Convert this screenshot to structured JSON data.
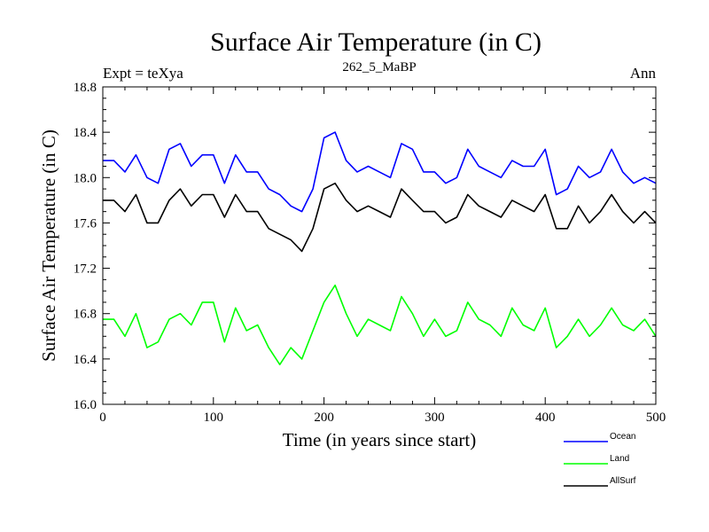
{
  "header": {
    "title": "Surface Air Temperature (in C)",
    "subtitle": "262_5_MaBP",
    "left_label": "Expt = teXya",
    "right_label": "Ann"
  },
  "chart_data": {
    "type": "line",
    "title": "Surface Air Temperature (in C)",
    "subtitle": "262_5_MaBP",
    "xlabel": "Time (in years since start)",
    "ylabel": "Surface Air Temperature (in C)",
    "xlim": [
      0,
      500
    ],
    "ylim": [
      16.0,
      18.8
    ],
    "xticks": [
      "0",
      "100",
      "200",
      "300",
      "400",
      "500"
    ],
    "yticks": [
      "16.0",
      "16.4",
      "16.8",
      "17.2",
      "17.6",
      "18.0",
      "18.4",
      "18.8"
    ],
    "grid": false,
    "legend_position": "bottom-right",
    "x": [
      0,
      10,
      20,
      30,
      40,
      50,
      60,
      70,
      80,
      90,
      100,
      110,
      120,
      130,
      140,
      150,
      160,
      170,
      180,
      190,
      200,
      210,
      220,
      230,
      240,
      250,
      260,
      270,
      280,
      290,
      300,
      310,
      320,
      330,
      340,
      350,
      360,
      370,
      380,
      390,
      400,
      410,
      420,
      430,
      440,
      450,
      460,
      470,
      480,
      490,
      500
    ],
    "series": [
      {
        "name": "Ocean",
        "color": "#0000ff",
        "values": [
          18.15,
          18.15,
          18.05,
          18.2,
          18.0,
          17.95,
          18.25,
          18.3,
          18.1,
          18.2,
          18.2,
          17.95,
          18.2,
          18.05,
          18.05,
          17.9,
          17.85,
          17.75,
          17.7,
          17.9,
          18.35,
          18.4,
          18.15,
          18.05,
          18.1,
          18.05,
          18.0,
          18.3,
          18.25,
          18.05,
          18.05,
          17.95,
          18.0,
          18.25,
          18.1,
          18.05,
          18.0,
          18.15,
          18.1,
          18.1,
          18.25,
          17.85,
          17.9,
          18.1,
          18.0,
          18.05,
          18.25,
          18.05,
          17.95,
          18.0,
          17.95
        ]
      },
      {
        "name": "Land",
        "color": "#00ff00",
        "values": [
          16.75,
          16.75,
          16.6,
          16.8,
          16.5,
          16.55,
          16.75,
          16.8,
          16.7,
          16.9,
          16.9,
          16.55,
          16.85,
          16.65,
          16.7,
          16.5,
          16.35,
          16.5,
          16.4,
          16.65,
          16.9,
          17.05,
          16.8,
          16.6,
          16.75,
          16.7,
          16.65,
          16.95,
          16.8,
          16.6,
          16.75,
          16.6,
          16.65,
          16.9,
          16.75,
          16.7,
          16.6,
          16.85,
          16.7,
          16.65,
          16.85,
          16.5,
          16.6,
          16.75,
          16.6,
          16.7,
          16.85,
          16.7,
          16.65,
          16.75,
          16.6
        ]
      },
      {
        "name": "AllSurf",
        "color": "#000000",
        "values": [
          17.8,
          17.8,
          17.7,
          17.85,
          17.6,
          17.6,
          17.8,
          17.9,
          17.75,
          17.85,
          17.85,
          17.65,
          17.85,
          17.7,
          17.7,
          17.55,
          17.5,
          17.45,
          17.35,
          17.55,
          17.9,
          17.95,
          17.8,
          17.7,
          17.75,
          17.7,
          17.65,
          17.9,
          17.8,
          17.7,
          17.7,
          17.6,
          17.65,
          17.85,
          17.75,
          17.7,
          17.65,
          17.8,
          17.75,
          17.7,
          17.85,
          17.55,
          17.55,
          17.75,
          17.6,
          17.7,
          17.85,
          17.7,
          17.6,
          17.7,
          17.6
        ]
      }
    ]
  }
}
